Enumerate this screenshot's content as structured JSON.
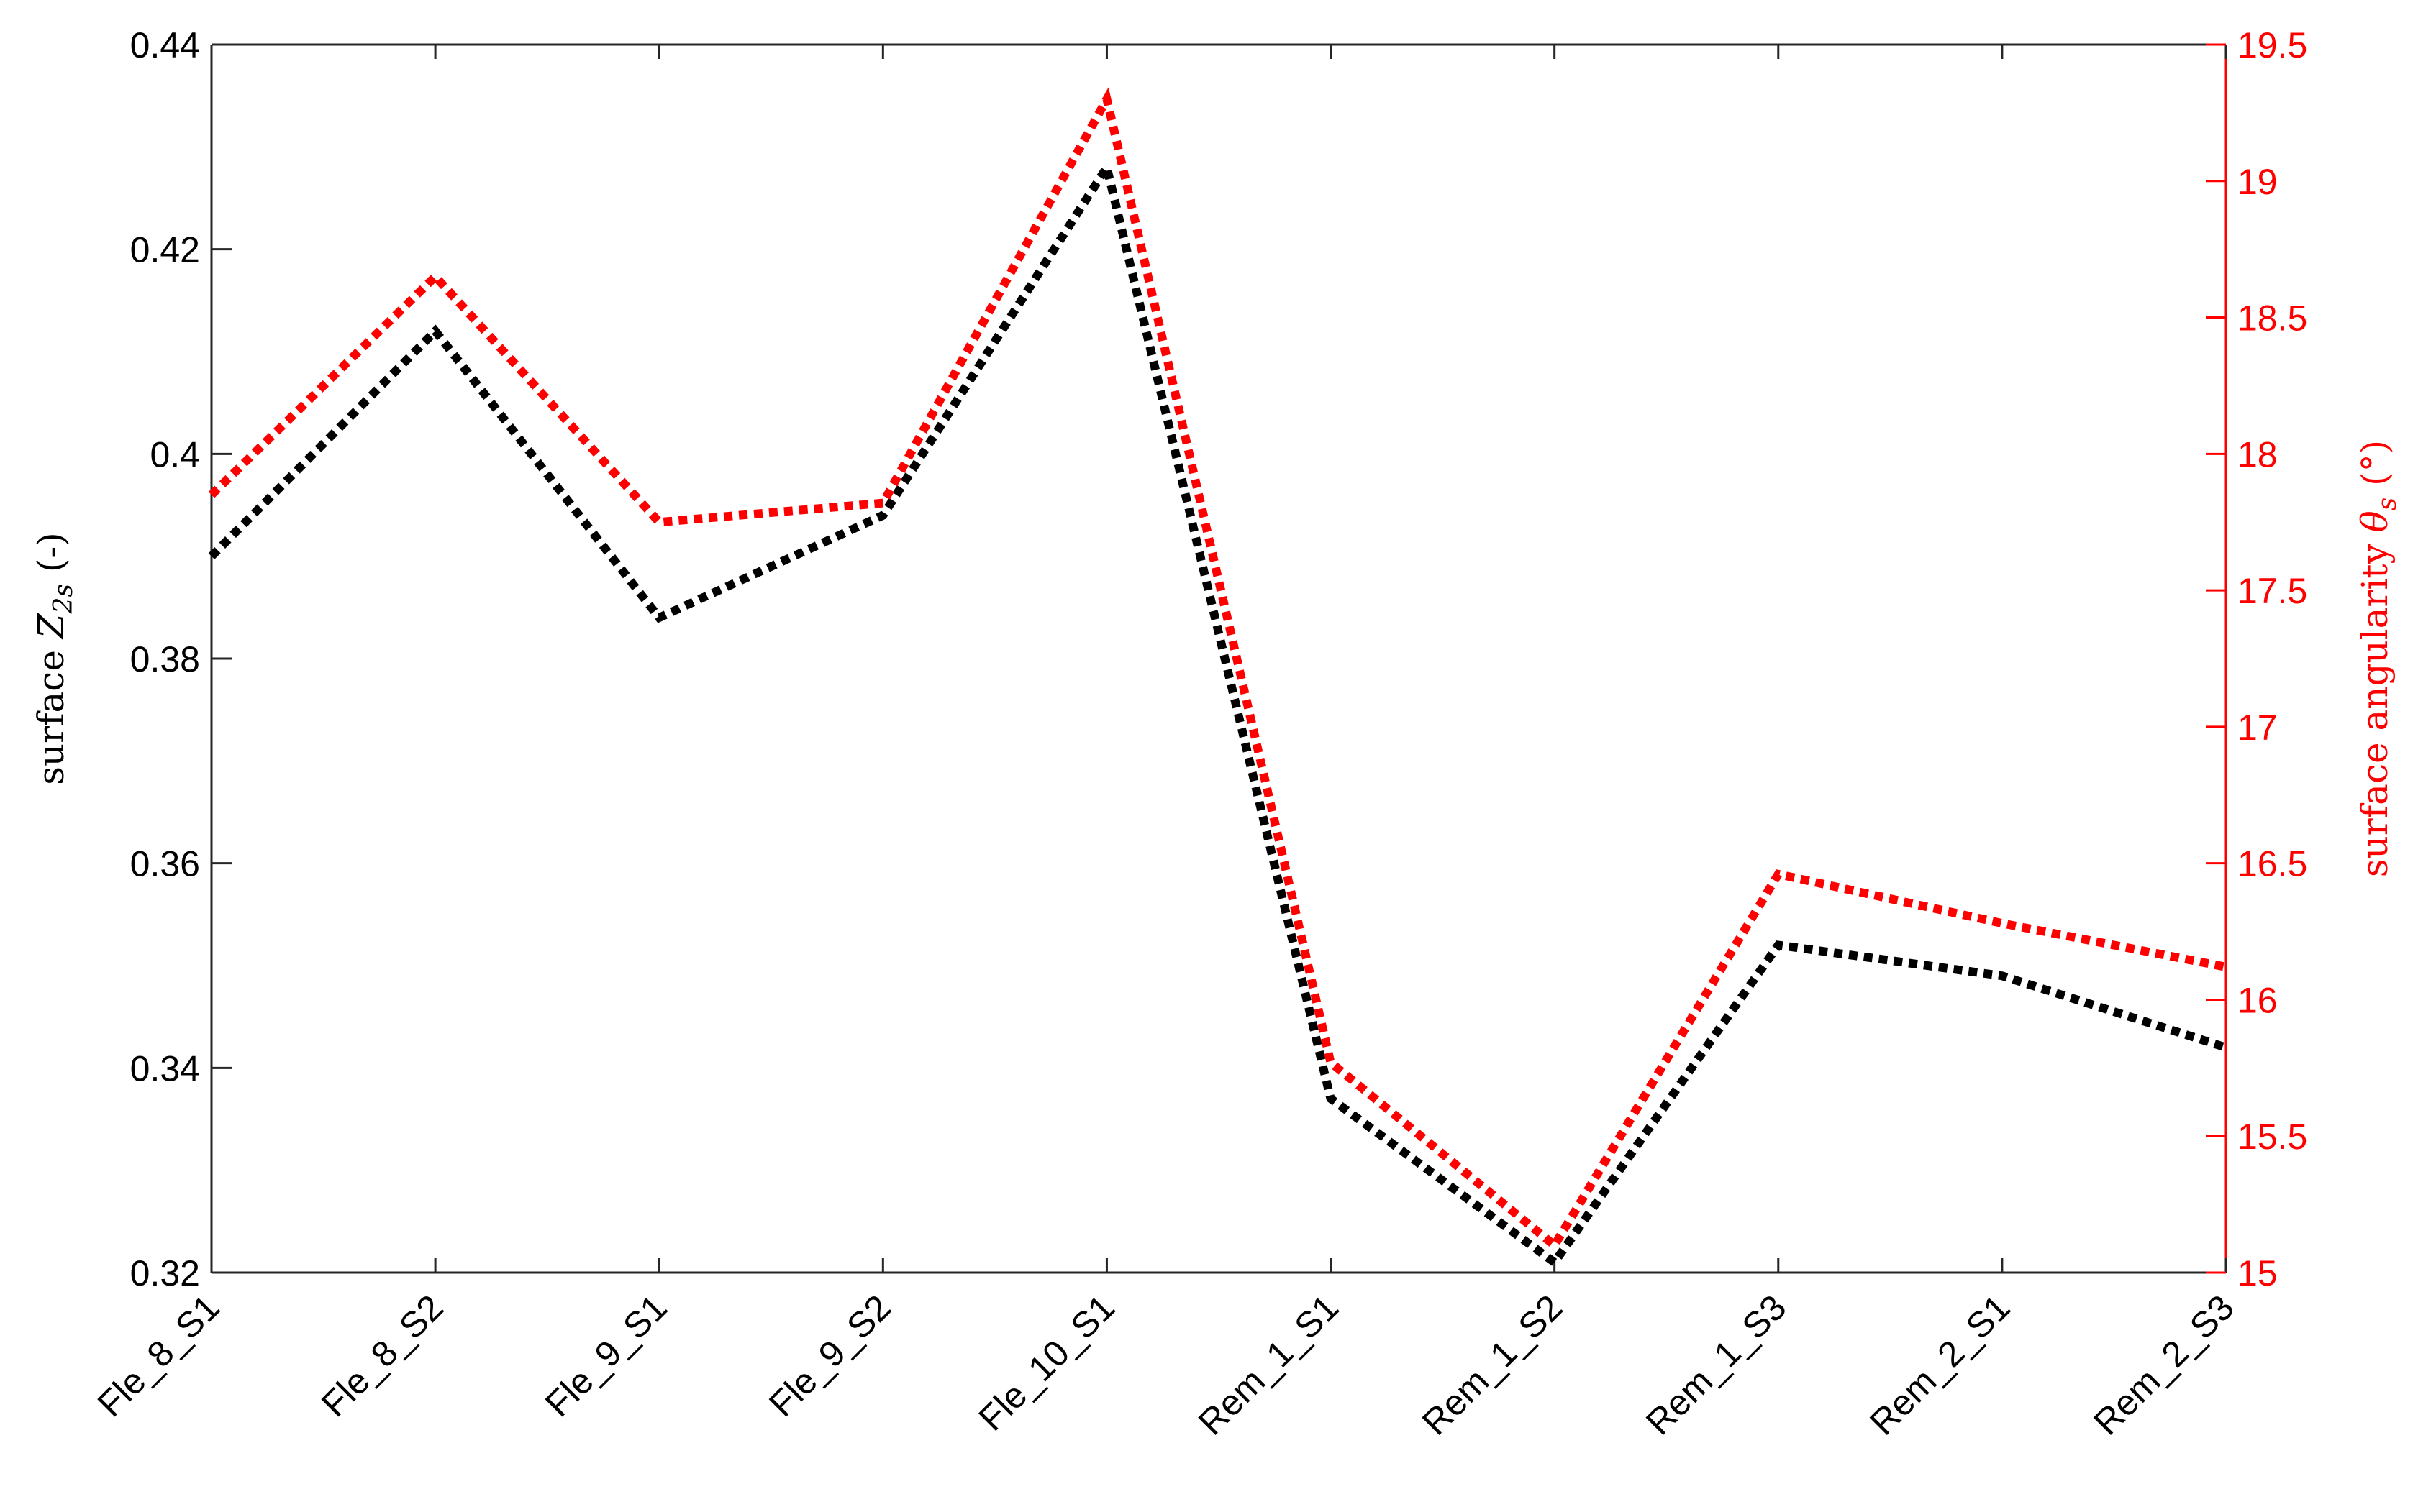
{
  "chart_data": {
    "type": "line",
    "categories": [
      "Fle_8_S1",
      "Fle_8_S2",
      "Fle_9_S1",
      "Fle_9_S2",
      "Fle_10_S1",
      "Rem_1_S1",
      "Rem_1_S2",
      "Rem_1_S3",
      "Rem_2_S1",
      "Rem_2_S3"
    ],
    "left_axis": {
      "label_prefix": "surface ",
      "label_var": "Z",
      "label_sub": "2s",
      "label_suffix": " (-)",
      "ylim": [
        0.32,
        0.44
      ],
      "ticks": [
        "0.32",
        "0.34",
        "0.36",
        "0.38",
        "0.4",
        "0.42",
        "0.44"
      ],
      "color": "#000000"
    },
    "right_axis": {
      "label_prefix": "surface angularity ",
      "label_var": "θ",
      "label_sub": "s",
      "label_suffix": " (°)",
      "ylim": [
        15,
        19.5
      ],
      "ticks": [
        "15",
        "15.5",
        "16",
        "16.5",
        "17",
        "17.5",
        "18",
        "18.5",
        "19",
        "19.5"
      ],
      "color": "#ff0000"
    },
    "series": [
      {
        "axis": "left",
        "color": "#000000",
        "style": "dotted",
        "values": [
          0.39,
          0.412,
          0.384,
          0.394,
          0.428,
          0.337,
          0.321,
          0.352,
          0.349,
          0.342
        ]
      },
      {
        "axis": "right",
        "color": "#ff0000",
        "style": "dotted",
        "values": [
          17.85,
          18.65,
          17.75,
          17.82,
          19.3,
          15.77,
          15.1,
          16.46,
          16.28,
          16.12
        ]
      }
    ],
    "grid": false,
    "legend": "none"
  }
}
